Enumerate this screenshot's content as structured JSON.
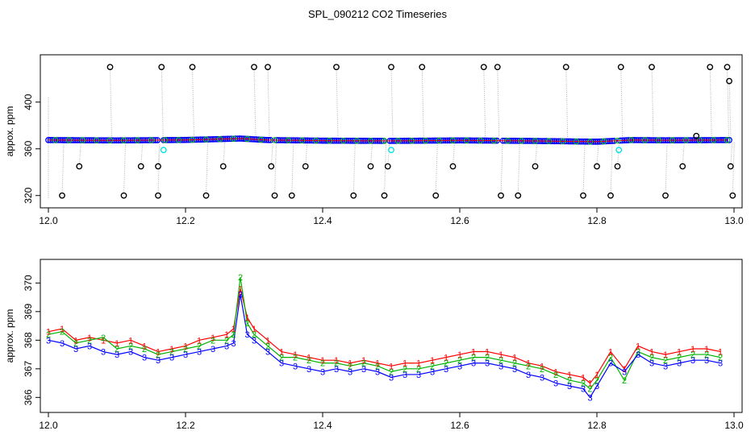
{
  "title": "SPL_090212  CO2 Timeseries",
  "chart_data": [
    {
      "type": "scatter",
      "panel": "top",
      "xlabel": "",
      "ylabel": "appox. ppm",
      "xlim": [
        12.0,
        13.0
      ],
      "ylim": [
        315,
        435
      ],
      "xticks": [
        "12.0",
        "12.2",
        "12.4",
        "12.6",
        "12.8",
        "13.0"
      ],
      "yticks": [
        "320",
        "360",
        "400"
      ],
      "grid": false,
      "colors": {
        "main_line": "#ff0000",
        "main_points": "#0000ff",
        "overlay": "#00cc00",
        "outliers": "#000000",
        "flagged": "#00e5e5",
        "spikes": "#b0b0b0"
      },
      "series": [
        {
          "values": [
            [
              12.0,
              367.5
            ],
            [
              12.1,
              367.2
            ],
            [
              12.2,
              367.6
            ],
            [
              12.28,
              368.8
            ],
            [
              12.32,
              367.5
            ],
            [
              12.4,
              367.0
            ],
            [
              12.5,
              366.8
            ],
            [
              12.6,
              367.2
            ],
            [
              12.7,
              366.8
            ],
            [
              12.8,
              366.1
            ],
            [
              12.85,
              367.5
            ],
            [
              12.9,
              367.3
            ],
            [
              12.99,
              367.5
            ]
          ]
        },
        {
          "values": [
            [
              12.02,
              320
            ],
            [
              12.045,
              345
            ],
            [
              12.09,
              430
            ],
            [
              12.11,
              320
            ],
            [
              12.135,
              345
            ],
            [
              12.16,
              320
            ],
            [
              12.16,
              345
            ],
            [
              12.165,
              430
            ],
            [
              12.21,
              430
            ],
            [
              12.23,
              320
            ],
            [
              12.255,
              345
            ],
            [
              12.3,
              430
            ],
            [
              12.32,
              430
            ],
            [
              12.325,
              345
            ],
            [
              12.33,
              320
            ],
            [
              12.355,
              320
            ],
            [
              12.375,
              345
            ],
            [
              12.42,
              430
            ],
            [
              12.445,
              320
            ],
            [
              12.47,
              345
            ],
            [
              12.49,
              320
            ],
            [
              12.495,
              345
            ],
            [
              12.5,
              430
            ],
            [
              12.545,
              430
            ],
            [
              12.565,
              320
            ],
            [
              12.59,
              345
            ],
            [
              12.635,
              430
            ],
            [
              12.655,
              430
            ],
            [
              12.66,
              320
            ],
            [
              12.685,
              320
            ],
            [
              12.71,
              345
            ],
            [
              12.755,
              430
            ],
            [
              12.78,
              320
            ],
            [
              12.8,
              345
            ],
            [
              12.82,
              320
            ],
            [
              12.83,
              345
            ],
            [
              12.835,
              430
            ],
            [
              12.88,
              430
            ],
            [
              12.9,
              320
            ],
            [
              12.925,
              345
            ],
            [
              12.945,
              371
            ],
            [
              12.965,
              430
            ],
            [
              12.99,
              430
            ],
            [
              12.993,
              418
            ],
            [
              12.995,
              345
            ],
            [
              12.998,
              320
            ]
          ]
        },
        {
          "values": [
            [
              12.168,
              359
            ],
            [
              12.5,
              359
            ],
            [
              12.832,
              359
            ]
          ]
        }
      ]
    },
    {
      "type": "line",
      "panel": "bottom",
      "xlabel": "",
      "ylabel": "approx. ppm",
      "xlim": [
        12.0,
        13.0
      ],
      "ylim": [
        365.7,
        370.6
      ],
      "xticks": [
        "12.0",
        "12.2",
        "12.4",
        "12.6",
        "12.8",
        "13.0"
      ],
      "yticks": [
        "366",
        "367",
        "368",
        "369",
        "370"
      ],
      "grid": false,
      "point_labels": [
        "1",
        "2",
        "3"
      ],
      "colors": {
        "1": "#ff0000",
        "2": "#00b400",
        "3": "#0000ff"
      },
      "x": [
        12.0,
        12.02,
        12.04,
        12.06,
        12.08,
        12.1,
        12.12,
        12.14,
        12.16,
        12.18,
        12.2,
        12.22,
        12.24,
        12.26,
        12.27,
        12.28,
        12.29,
        12.3,
        12.32,
        12.34,
        12.36,
        12.38,
        12.4,
        12.42,
        12.44,
        12.46,
        12.48,
        12.5,
        12.52,
        12.54,
        12.56,
        12.58,
        12.6,
        12.62,
        12.64,
        12.66,
        12.68,
        12.7,
        12.72,
        12.74,
        12.76,
        12.78,
        12.79,
        12.8,
        12.82,
        12.84,
        12.86,
        12.88,
        12.9,
        12.92,
        12.94,
        12.96,
        12.98
      ],
      "series": [
        {
          "values": [
            368.3,
            368.4,
            368.0,
            368.1,
            368.0,
            367.9,
            368.0,
            367.8,
            367.6,
            367.7,
            367.8,
            368.0,
            368.1,
            368.2,
            368.4,
            369.8,
            368.8,
            368.4,
            368.0,
            367.6,
            367.5,
            367.4,
            367.3,
            367.3,
            367.2,
            367.3,
            367.2,
            367.1,
            367.2,
            367.2,
            367.3,
            367.4,
            367.5,
            367.6,
            367.6,
            367.5,
            367.4,
            367.2,
            367.1,
            366.9,
            366.8,
            366.7,
            366.5,
            366.8,
            367.6,
            367.0,
            367.8,
            367.6,
            367.5,
            367.6,
            367.7,
            367.7,
            367.6
          ]
        },
        {
          "values": [
            368.2,
            368.3,
            367.9,
            368.0,
            368.1,
            367.7,
            367.8,
            367.7,
            367.5,
            367.6,
            367.7,
            367.8,
            368.0,
            368.0,
            368.2,
            370.2,
            368.6,
            368.2,
            367.8,
            367.4,
            367.4,
            367.3,
            367.2,
            367.2,
            367.1,
            367.2,
            367.1,
            366.9,
            367.0,
            367.0,
            367.1,
            367.2,
            367.3,
            367.4,
            367.4,
            367.3,
            367.2,
            367.1,
            367.0,
            366.8,
            366.6,
            366.5,
            366.3,
            366.6,
            367.4,
            366.6,
            367.6,
            367.4,
            367.3,
            367.4,
            367.5,
            367.5,
            367.4
          ]
        },
        {
          "values": [
            368.0,
            367.9,
            367.7,
            367.8,
            367.6,
            367.5,
            367.6,
            367.4,
            367.3,
            367.4,
            367.5,
            367.6,
            367.7,
            367.8,
            367.9,
            369.6,
            368.2,
            368.0,
            367.6,
            367.2,
            367.1,
            367.0,
            366.9,
            367.0,
            366.9,
            367.0,
            366.9,
            366.7,
            366.8,
            366.8,
            366.9,
            367.0,
            367.1,
            367.2,
            367.2,
            367.1,
            367.0,
            366.8,
            366.7,
            366.5,
            366.4,
            366.3,
            366.0,
            366.4,
            367.2,
            366.9,
            367.5,
            367.2,
            367.1,
            367.2,
            367.3,
            367.3,
            367.2
          ]
        }
      ]
    }
  ]
}
